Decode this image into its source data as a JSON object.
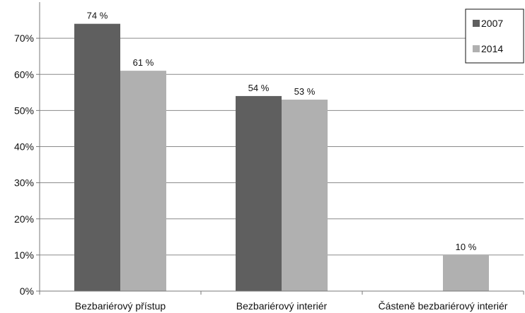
{
  "chart_data": {
    "type": "bar",
    "categories": [
      "Bezbariérový přístup",
      "Bezbariérový interiér",
      "Částeně bezbariérový interiér"
    ],
    "series": [
      {
        "name": "2007",
        "values": [
          74,
          54,
          null
        ],
        "labels": [
          "74 %",
          "54 %",
          ""
        ],
        "color": "#5f5f5f"
      },
      {
        "name": "2014",
        "values": [
          61,
          53,
          10
        ],
        "labels": [
          "61 %",
          "53 %",
          "10 %"
        ],
        "color": "#b0b0b0"
      }
    ],
    "ylim": [
      0,
      80
    ],
    "yticks": [
      0,
      10,
      20,
      30,
      40,
      50,
      60,
      70
    ],
    "ytick_labels": [
      "0%",
      "10%",
      "20%",
      "30%",
      "40%",
      "50%",
      "60%",
      "70%"
    ],
    "grid": true,
    "legend_position": "top-right"
  }
}
